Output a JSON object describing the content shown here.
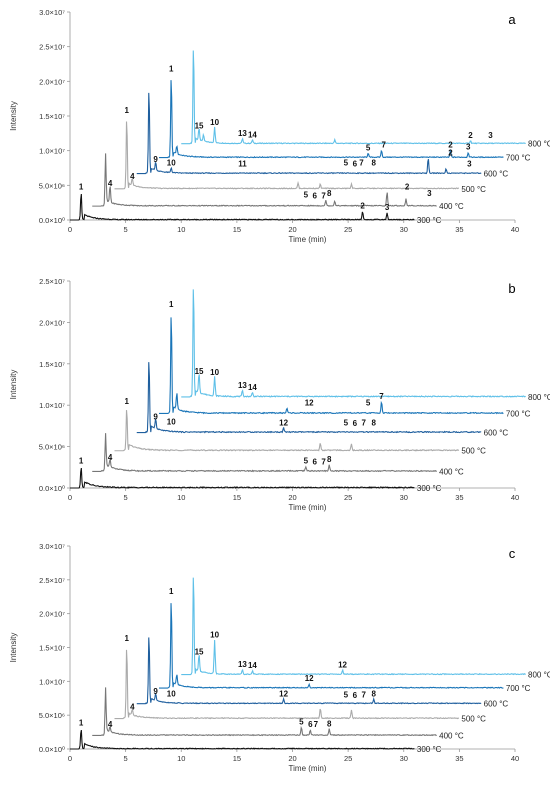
{
  "chart_data": [
    {
      "type": "line",
      "panel_label": "a",
      "ylabel": "Intensity",
      "xlabel": "Time (min)",
      "xlim": [
        0,
        40
      ],
      "ylim": [
        0,
        30000000
      ],
      "x_ticks": [
        "0",
        "5",
        "10",
        "15",
        "20",
        "25",
        "30",
        "35",
        "40"
      ],
      "y_ticks": [
        "0.0×10⁰",
        "5.0×10⁶",
        "1.0×10⁷",
        "1.5×10⁷",
        "2.0×10⁷",
        "2.5×10⁷",
        "3.0×10⁷"
      ],
      "grid": false,
      "series": [
        {
          "name": "300 °C",
          "color": "#111111",
          "x_offset": 0,
          "baseline": 0,
          "end_x": 31,
          "peaks": [
            {
              "x": 1.0,
              "h": 4000000
            },
            {
              "x": 26.3,
              "h": 1200000
            },
            {
              "x": 28.5,
              "h": 1000000
            }
          ],
          "labels": [
            {
              "t": "1",
              "x": 1.0,
              "h": 4000000
            },
            {
              "t": "2",
              "x": 26.3,
              "h": 1200000
            },
            {
              "t": "3",
              "x": 28.5,
              "h": 1000000
            }
          ]
        },
        {
          "name": "400 °C",
          "color": "#777777",
          "x_offset": 2,
          "baseline": 2000000,
          "end_x": 33,
          "peaks": [
            {
              "x": 1.2,
              "h": 7500000
            },
            {
              "x": 1.6,
              "h": 2500000
            },
            {
              "x": 21.0,
              "h": 800000
            },
            {
              "x": 21.8,
              "h": 700000
            },
            {
              "x": 26.5,
              "h": 2000000
            },
            {
              "x": 28.2,
              "h": 1000000
            }
          ],
          "labels": [
            {
              "t": "4",
              "x": 1.6,
              "h": 2500000
            },
            {
              "t": "5",
              "x": 19.2,
              "h": 800000
            },
            {
              "t": "6",
              "x": 20.0,
              "h": 700000
            },
            {
              "t": "7",
              "x": 20.8,
              "h": 700000
            },
            {
              "t": "8",
              "x": 21.3,
              "h": 1000000
            },
            {
              "t": "2",
              "x": 28.3,
              "h": 2000000
            },
            {
              "t": "3",
              "x": 30.3,
              "h": 1000000
            }
          ]
        },
        {
          "name": "500 °C",
          "color": "#aaaaaa",
          "x_offset": 4,
          "baseline": 4500000,
          "end_x": 35,
          "peaks": [
            {
              "x": 1.1,
              "h": 10500000
            },
            {
              "x": 1.6,
              "h": 1000000
            },
            {
              "x": 16.5,
              "h": 800000
            },
            {
              "x": 18.5,
              "h": 600000
            },
            {
              "x": 21.3,
              "h": 600000
            }
          ],
          "labels": [
            {
              "t": "1",
              "x": 1.1,
              "h": 10500000
            },
            {
              "t": "4",
              "x": 1.6,
              "h": 1000000
            }
          ]
        },
        {
          "name": "600 °C",
          "color": "#1f5f9e",
          "x_offset": 6,
          "baseline": 6700000,
          "end_x": 37,
          "peaks": [
            {
              "x": 1.1,
              "h": 12500000
            },
            {
              "x": 1.7,
              "h": 1200000
            },
            {
              "x": 3.1,
              "h": 700000
            },
            {
              "x": 26.2,
              "h": 2200000
            },
            {
              "x": 27.8,
              "h": 600000
            }
          ],
          "labels": [
            {
              "t": "9",
              "x": 1.7,
              "h": 1200000
            },
            {
              "t": "10",
              "x": 3.1,
              "h": 700000
            },
            {
              "t": "11",
              "x": 9.5,
              "h": 600000
            },
            {
              "t": "5",
              "x": 18.8,
              "h": 700000
            },
            {
              "t": "6",
              "x": 19.6,
              "h": 600000
            },
            {
              "t": "7",
              "x": 20.2,
              "h": 700000
            },
            {
              "t": "8",
              "x": 21.3,
              "h": 700000
            },
            {
              "t": "2",
              "x": 28.2,
              "h": 2200000
            },
            {
              "t": "3",
              "x": 29.9,
              "h": 600000
            }
          ]
        },
        {
          "name": "700 °C",
          "color": "#1a75b8",
          "x_offset": 8,
          "baseline": 9000000,
          "end_x": 39,
          "peaks": [
            {
              "x": 1.1,
              "h": 12000000
            },
            {
              "x": 1.6,
              "h": 1200000
            },
            {
              "x": 18.8,
              "h": 600000
            },
            {
              "x": 20.0,
              "h": 1000000
            },
            {
              "x": 26.2,
              "h": 1000000
            },
            {
              "x": 27.8,
              "h": 700000
            }
          ],
          "labels": [
            {
              "t": "1",
              "x": 1.1,
              "h": 12000000
            },
            {
              "t": "5",
              "x": 18.8,
              "h": 600000
            },
            {
              "t": "7",
              "x": 20.2,
              "h": 1000000
            },
            {
              "t": "2",
              "x": 26.2,
              "h": 1000000
            },
            {
              "t": "3",
              "x": 27.8,
              "h": 700000
            }
          ]
        },
        {
          "name": "800 °C",
          "color": "#5fc0e8",
          "x_offset": 10,
          "baseline": 11000000,
          "end_x": 41,
          "peaks": [
            {
              "x": 1.1,
              "h": 14500000
            },
            {
              "x": 1.6,
              "h": 1800000
            },
            {
              "x": 2.0,
              "h": 1000000
            },
            {
              "x": 3.0,
              "h": 2300000
            },
            {
              "x": 5.5,
              "h": 700000
            },
            {
              "x": 6.4,
              "h": 500000
            },
            {
              "x": 13.8,
              "h": 500000
            },
            {
              "x": 26.0,
              "h": 400000
            }
          ],
          "labels": [
            {
              "t": "15",
              "x": 1.6,
              "h": 1800000
            },
            {
              "t": "10",
              "x": 3.0,
              "h": 2300000
            },
            {
              "t": "13",
              "x": 5.5,
              "h": 700000
            },
            {
              "t": "14",
              "x": 6.4,
              "h": 500000
            },
            {
              "t": "2",
              "x": 26.0,
              "h": 400000
            },
            {
              "t": "3",
              "x": 27.8,
              "h": 400000
            }
          ]
        }
      ]
    },
    {
      "type": "line",
      "panel_label": "b",
      "ylabel": "Intensity",
      "xlabel": "Time (min)",
      "xlim": [
        0,
        40
      ],
      "ylim": [
        0,
        25000000
      ],
      "x_ticks": [
        "0",
        "5",
        "10",
        "15",
        "20",
        "25",
        "30",
        "35",
        "40"
      ],
      "y_ticks": [
        "0.0×10⁰",
        "5.0×10⁶",
        "1.0×10⁷",
        "1.5×10⁷",
        "2.0×10⁷",
        "2.5×10⁷"
      ],
      "grid": false,
      "series": [
        {
          "name": "300 °C",
          "color": "#111111",
          "x_offset": 0,
          "baseline": 0,
          "end_x": 31,
          "peaks": [
            {
              "x": 1.0,
              "h": 2600000
            }
          ],
          "labels": [
            {
              "t": "1",
              "x": 1.0,
              "h": 2600000
            }
          ]
        },
        {
          "name": "400 °C",
          "color": "#777777",
          "x_offset": 2,
          "baseline": 2000000,
          "end_x": 33,
          "peaks": [
            {
              "x": 1.2,
              "h": 4600000
            },
            {
              "x": 1.6,
              "h": 1000000
            },
            {
              "x": 19.2,
              "h": 500000
            },
            {
              "x": 21.3,
              "h": 800000
            }
          ],
          "labels": [
            {
              "t": "4",
              "x": 1.6,
              "h": 1000000
            },
            {
              "t": "5",
              "x": 19.2,
              "h": 600000
            },
            {
              "t": "6",
              "x": 20.0,
              "h": 500000
            },
            {
              "t": "7",
              "x": 20.8,
              "h": 500000
            },
            {
              "t": "8",
              "x": 21.3,
              "h": 800000
            }
          ]
        },
        {
          "name": "500 °C",
          "color": "#aaaaaa",
          "x_offset": 4,
          "baseline": 4500000,
          "end_x": 35,
          "peaks": [
            {
              "x": 1.1,
              "h": 5300000
            },
            {
              "x": 18.5,
              "h": 900000
            },
            {
              "x": 21.3,
              "h": 800000
            }
          ],
          "labels": [
            {
              "t": "1",
              "x": 1.1,
              "h": 5300000
            }
          ]
        },
        {
          "name": "600 °C",
          "color": "#1f5f9e",
          "x_offset": 6,
          "baseline": 6700000,
          "end_x": 37,
          "peaks": [
            {
              "x": 1.1,
              "h": 9200000
            },
            {
              "x": 1.7,
              "h": 1200000
            },
            {
              "x": 13.2,
              "h": 500000
            }
          ],
          "labels": [
            {
              "t": "9",
              "x": 1.7,
              "h": 1200000
            },
            {
              "t": "10",
              "x": 3.1,
              "h": 600000
            },
            {
              "t": "12",
              "x": 13.2,
              "h": 500000
            },
            {
              "t": "5",
              "x": 18.8,
              "h": 500000
            },
            {
              "t": "6",
              "x": 19.6,
              "h": 400000
            },
            {
              "t": "7",
              "x": 20.4,
              "h": 500000
            },
            {
              "t": "8",
              "x": 21.3,
              "h": 500000
            }
          ]
        },
        {
          "name": "700 °C",
          "color": "#1a75b8",
          "x_offset": 8,
          "baseline": 9000000,
          "end_x": 39,
          "peaks": [
            {
              "x": 1.1,
              "h": 12500000
            },
            {
              "x": 1.6,
              "h": 2000000
            },
            {
              "x": 20.0,
              "h": 1400000
            },
            {
              "x": 11.5,
              "h": 600000
            }
          ],
          "labels": [
            {
              "t": "1",
              "x": 1.1,
              "h": 12500000
            },
            {
              "t": "12",
              "x": 13.5,
              "h": 600000
            },
            {
              "t": "5",
              "x": 18.8,
              "h": 600000
            },
            {
              "t": "7",
              "x": 20.0,
              "h": 1400000
            }
          ]
        },
        {
          "name": "800 °C",
          "color": "#5fc0e8",
          "x_offset": 10,
          "baseline": 11000000,
          "end_x": 41,
          "peaks": [
            {
              "x": 1.1,
              "h": 14000000
            },
            {
              "x": 1.6,
              "h": 2400000
            },
            {
              "x": 3.0,
              "h": 2300000
            },
            {
              "x": 5.5,
              "h": 700000
            },
            {
              "x": 6.4,
              "h": 500000
            }
          ],
          "labels": [
            {
              "t": "15",
              "x": 1.6,
              "h": 2400000
            },
            {
              "t": "10",
              "x": 3.0,
              "h": 2300000
            },
            {
              "t": "13",
              "x": 5.5,
              "h": 700000
            },
            {
              "t": "14",
              "x": 6.4,
              "h": 500000
            }
          ]
        }
      ]
    },
    {
      "type": "line",
      "panel_label": "c",
      "ylabel": "Intensity",
      "xlabel": "Time (min)",
      "xlim": [
        0,
        40
      ],
      "ylim": [
        0,
        30000000
      ],
      "x_ticks": [
        "0",
        "5",
        "10",
        "15",
        "20",
        "25",
        "30",
        "35",
        "40"
      ],
      "y_ticks": [
        "0.0×10⁰",
        "5.0×10⁶",
        "1.0×10⁷",
        "1.5×10⁷",
        "2.0×10⁷",
        "2.5×10⁷",
        "3.0×10⁷"
      ],
      "grid": false,
      "series": [
        {
          "name": "300 °C",
          "color": "#111111",
          "x_offset": 0,
          "baseline": 0,
          "end_x": 31,
          "peaks": [
            {
              "x": 1.0,
              "h": 3000000
            }
          ],
          "labels": [
            {
              "t": "1",
              "x": 1.0,
              "h": 3000000
            }
          ]
        },
        {
          "name": "400 °C",
          "color": "#777777",
          "x_offset": 2,
          "baseline": 2000000,
          "end_x": 33,
          "peaks": [
            {
              "x": 1.2,
              "h": 7000000
            },
            {
              "x": 1.6,
              "h": 800000
            },
            {
              "x": 18.8,
              "h": 1200000
            },
            {
              "x": 19.6,
              "h": 800000
            },
            {
              "x": 21.3,
              "h": 900000
            }
          ],
          "labels": [
            {
              "t": "4",
              "x": 1.6,
              "h": 800000
            },
            {
              "t": "5",
              "x": 18.8,
              "h": 1200000
            },
            {
              "t": "6",
              "x": 19.6,
              "h": 800000
            },
            {
              "t": "7",
              "x": 20.1,
              "h": 800000
            },
            {
              "t": "8",
              "x": 21.3,
              "h": 900000
            }
          ]
        },
        {
          "name": "500 °C",
          "color": "#aaaaaa",
          "x_offset": 4,
          "baseline": 4500000,
          "end_x": 35,
          "peaks": [
            {
              "x": 1.1,
              "h": 11000000
            },
            {
              "x": 1.6,
              "h": 900000
            },
            {
              "x": 18.5,
              "h": 1500000
            },
            {
              "x": 21.3,
              "h": 1200000
            }
          ],
          "labels": [
            {
              "t": "1",
              "x": 1.1,
              "h": 11000000
            },
            {
              "t": "4",
              "x": 1.6,
              "h": 900000
            }
          ]
        },
        {
          "name": "600 °C",
          "color": "#1f5f9e",
          "x_offset": 6,
          "baseline": 6700000,
          "end_x": 37,
          "peaks": [
            {
              "x": 1.1,
              "h": 10500000
            },
            {
              "x": 1.7,
              "h": 1000000
            },
            {
              "x": 13.2,
              "h": 600000
            },
            {
              "x": 21.3,
              "h": 600000
            }
          ],
          "labels": [
            {
              "t": "9",
              "x": 1.7,
              "h": 1000000
            },
            {
              "t": "10",
              "x": 3.1,
              "h": 600000
            },
            {
              "t": "12",
              "x": 13.2,
              "h": 600000
            },
            {
              "t": "5",
              "x": 18.8,
              "h": 500000
            },
            {
              "t": "6",
              "x": 19.6,
              "h": 400000
            },
            {
              "t": "7",
              "x": 20.4,
              "h": 500000
            },
            {
              "t": "8",
              "x": 21.3,
              "h": 600000
            }
          ]
        },
        {
          "name": "700 °C",
          "color": "#1a75b8",
          "x_offset": 8,
          "baseline": 9000000,
          "end_x": 39,
          "peaks": [
            {
              "x": 1.1,
              "h": 13500000
            },
            {
              "x": 1.6,
              "h": 1500000
            },
            {
              "x": 13.5,
              "h": 500000
            }
          ],
          "labels": [
            {
              "t": "1",
              "x": 1.1,
              "h": 13500000
            },
            {
              "t": "12",
              "x": 13.5,
              "h": 600000
            }
          ]
        },
        {
          "name": "800 °C",
          "color": "#5fc0e8",
          "x_offset": 10,
          "baseline": 11000000,
          "end_x": 41,
          "peaks": [
            {
              "x": 1.1,
              "h": 15500000
            },
            {
              "x": 1.6,
              "h": 2500000
            },
            {
              "x": 3.0,
              "h": 5000000
            },
            {
              "x": 5.5,
              "h": 700000
            },
            {
              "x": 6.4,
              "h": 500000
            },
            {
              "x": 14.5,
              "h": 600000
            }
          ],
          "labels": [
            {
              "t": "15",
              "x": 1.6,
              "h": 2500000
            },
            {
              "t": "10",
              "x": 3.0,
              "h": 5000000
            },
            {
              "t": "13",
              "x": 5.5,
              "h": 700000
            },
            {
              "t": "14",
              "x": 6.4,
              "h": 500000
            },
            {
              "t": "12",
              "x": 14.5,
              "h": 600000
            }
          ]
        }
      ]
    }
  ]
}
